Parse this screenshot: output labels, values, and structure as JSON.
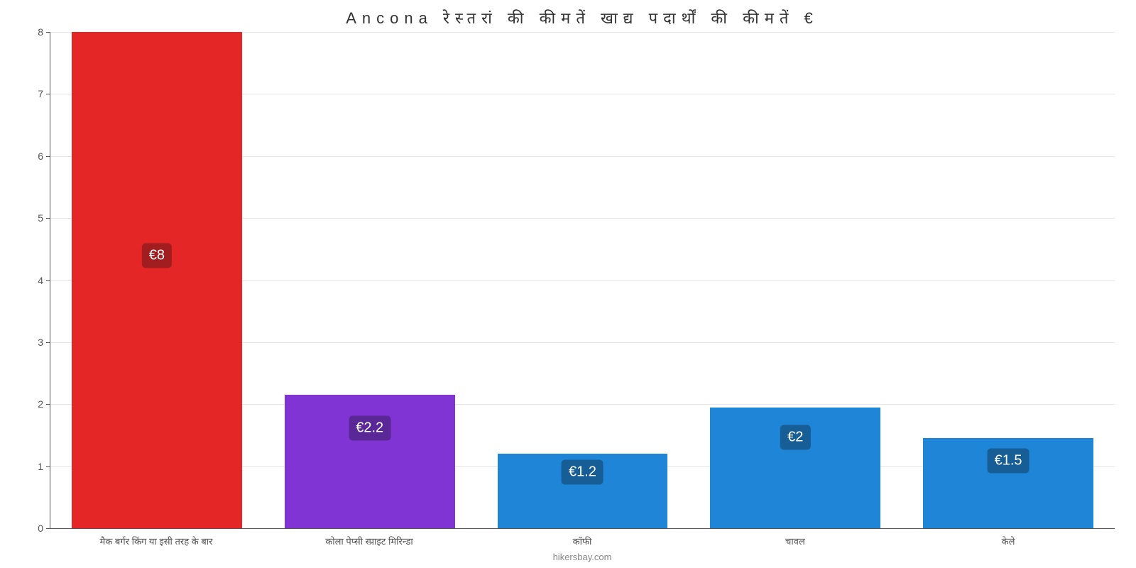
{
  "chart": {
    "type": "bar",
    "title": "Ancona रेस्तरां की कीमतें खाद्य पदार्थों की कीमतें €",
    "title_fontsize": 22,
    "title_color": "#333333",
    "background_color": "#ffffff",
    "grid_color": "#e6e6e6",
    "axis_color": "#555555",
    "ylim": [
      0,
      8
    ],
    "ytick_step": 1,
    "yticks": [
      0,
      1,
      2,
      3,
      4,
      5,
      6,
      7,
      8
    ],
    "label_fontsize": 14,
    "xlabel_fontsize": 13,
    "bar_width": 0.8,
    "items": [
      {
        "category": "मैक बर्गर किंग या इसी तरह के बार",
        "value": 8,
        "display": "€8",
        "bar_color": "#e52626",
        "badge_color": "#a21d1f"
      },
      {
        "category": "कोला पेप्सी स्प्राइट मिरिन्डा",
        "value": 2.15,
        "display": "€2.2",
        "bar_color": "#8034d4",
        "badge_color": "#5a2796"
      },
      {
        "category": "कॉफी",
        "value": 1.2,
        "display": "€1.2",
        "bar_color": "#1f85d6",
        "badge_color": "#185e96"
      },
      {
        "category": "चावल",
        "value": 1.95,
        "display": "€2",
        "bar_color": "#1f85d6",
        "badge_color": "#185e96"
      },
      {
        "category": "केले",
        "value": 1.45,
        "display": "€1.5",
        "bar_color": "#1f85d6",
        "badge_color": "#185e96"
      }
    ],
    "attribution": "hikersbay.com",
    "attribution_color": "#888888"
  }
}
